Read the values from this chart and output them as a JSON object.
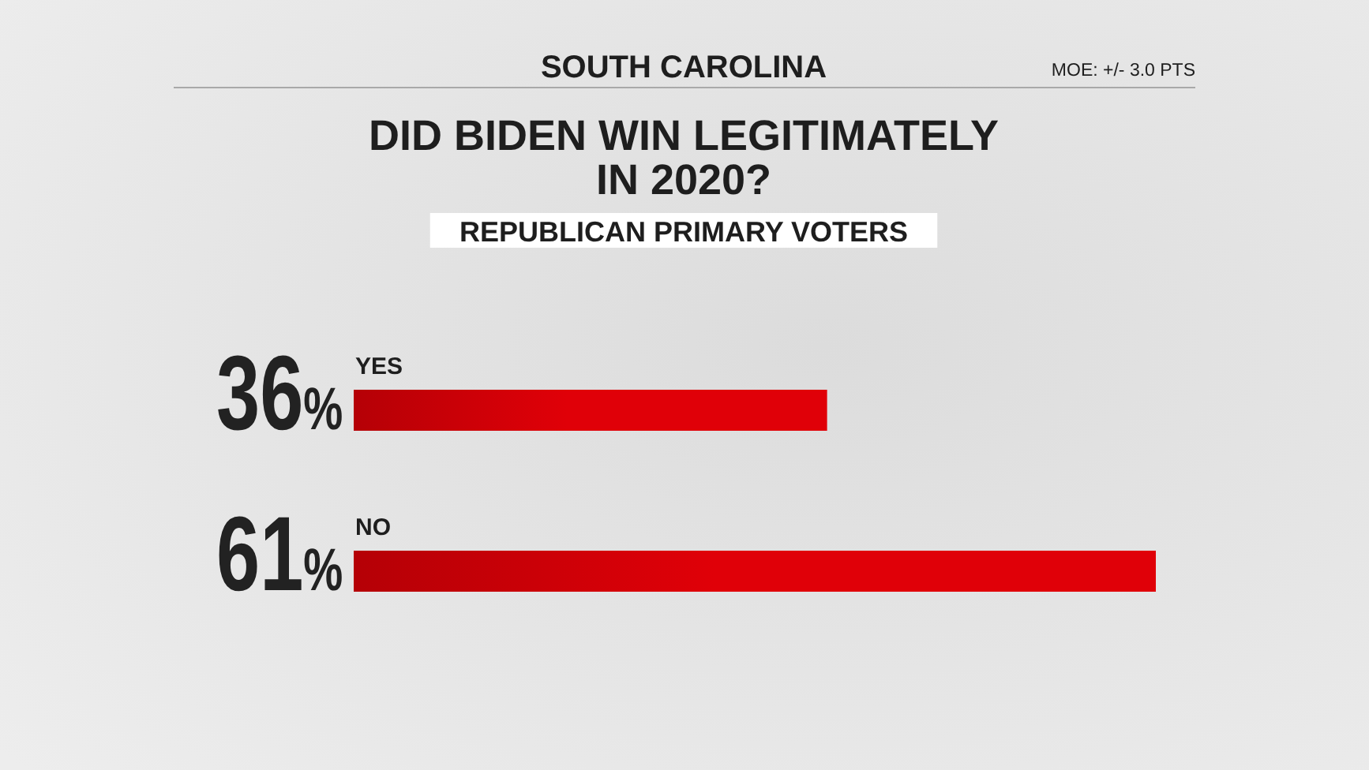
{
  "chart_data": {
    "type": "bar",
    "orientation": "horizontal",
    "title": "DID BIDEN WIN LEGITIMATELY IN 2020?",
    "subtitle": "REPUBLICAN PRIMARY VOTERS",
    "annotations": [
      "SOUTH CAROLINA",
      "MOE: +/- 3.0 PTS"
    ],
    "categories": [
      "YES",
      "NO"
    ],
    "values": [
      36,
      61
    ],
    "value_labels": [
      "36%",
      "61%"
    ],
    "color": "#e00008",
    "tick_labels": "y"
  }
}
